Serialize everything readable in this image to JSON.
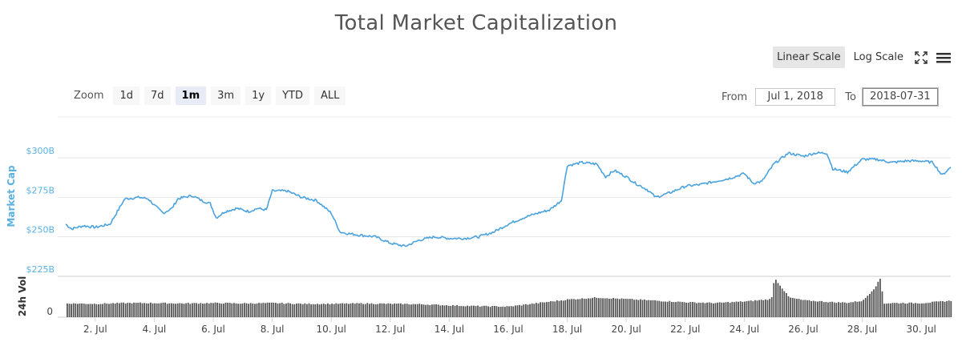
{
  "title": "Total Market Capitalization",
  "scale_controls": {
    "linear": "Linear Scale",
    "log": "Log Scale",
    "fullscreen_icon": "fullscreen-icon",
    "menu_icon": "hamburger-menu-icon",
    "active": "linear"
  },
  "zoom": {
    "label": "Zoom",
    "buttons": [
      "1d",
      "7d",
      "1m",
      "3m",
      "1y",
      "YTD",
      "ALL"
    ],
    "active": "1m"
  },
  "range": {
    "from_label": "From",
    "from_value": "Jul 1, 2018",
    "to_label": "To",
    "to_value": "2018-07-31"
  },
  "colors": {
    "line": "#4aa3df",
    "volume": "#555555",
    "grid": "#e6e6e6",
    "axis_label": "#5ab1e0"
  },
  "chart_data": [
    {
      "type": "line",
      "ylabel": "Market Cap",
      "ylim": [
        225,
        300
      ],
      "yticks": [
        "$225B",
        "$250B",
        "$275B",
        "$300B"
      ],
      "ytick_values": [
        225,
        250,
        275,
        300
      ],
      "xlim": [
        1.0,
        31.0
      ],
      "grid": true,
      "series": [
        {
          "x": [
            1.0,
            1.2,
            1.6,
            2.0,
            2.5,
            3.0,
            3.5,
            3.8,
            4.0,
            4.3,
            4.6,
            4.8,
            5.0,
            5.3,
            5.6,
            5.9,
            6.1,
            6.4,
            6.8,
            7.2,
            7.5,
            7.8,
            8.0,
            8.5,
            9.0,
            9.5,
            10.0,
            10.3,
            10.6,
            11.0,
            11.5,
            12.0,
            12.5,
            13.0,
            13.5,
            14.0,
            14.5,
            15.0,
            15.5,
            16.0,
            16.5,
            17.0,
            17.4,
            17.8,
            18.0,
            18.5,
            19.0,
            19.3,
            19.6,
            20.0,
            20.3,
            20.7,
            21.0,
            21.5,
            22.0,
            22.5,
            23.0,
            23.5,
            24.0,
            24.3,
            24.6,
            25.0,
            25.5,
            26.0,
            26.4,
            26.8,
            27.0,
            27.5,
            28.0,
            28.5,
            29.0,
            29.5,
            30.0,
            30.4,
            30.7,
            31.0
          ],
          "values": [
            258,
            255,
            257,
            256,
            258,
            274,
            275,
            274,
            270,
            265,
            268,
            274,
            275,
            276,
            273,
            271,
            262,
            266,
            268,
            266,
            268,
            267,
            279,
            279,
            275,
            273,
            265,
            253,
            252,
            251,
            250,
            246,
            244,
            248,
            250,
            249,
            249,
            250,
            253,
            258,
            262,
            265,
            267,
            273,
            295,
            297,
            296,
            288,
            292,
            288,
            284,
            280,
            275,
            278,
            282,
            283,
            285,
            287,
            290,
            284,
            285,
            296,
            303,
            301,
            303,
            303,
            293,
            291,
            299,
            299,
            297,
            298,
            298,
            297,
            289,
            294
          ]
        }
      ]
    },
    {
      "type": "bar",
      "ylabel": "24h Vol",
      "yticks": [
        "0"
      ],
      "ylim": [
        0,
        100
      ],
      "x": [
        1.0,
        2.0,
        3.0,
        4.0,
        5.0,
        6.0,
        7.0,
        8.0,
        9.0,
        10.0,
        11.0,
        12.0,
        13.0,
        14.0,
        15.0,
        16.0,
        17.0,
        18.0,
        19.0,
        20.0,
        21.0,
        22.0,
        23.0,
        24.0,
        24.9,
        25.0,
        25.5,
        26.0,
        27.0,
        27.5,
        28.0,
        28.4,
        28.6,
        28.7,
        29.0,
        30.0,
        31.0
      ],
      "values": [
        35,
        34,
        36,
        36,
        35,
        36,
        35,
        36,
        34,
        34,
        35,
        34,
        33,
        30,
        28,
        27,
        36,
        45,
        50,
        46,
        42,
        38,
        36,
        40,
        46,
        100,
        50,
        43,
        38,
        37,
        42,
        75,
        100,
        35,
        36,
        36,
        42
      ],
      "xticks": [
        "2. Jul",
        "4. Jul",
        "6. Jul",
        "8. Jul",
        "10. Jul",
        "12. Jul",
        "14. Jul",
        "16. Jul",
        "18. Jul",
        "20. Jul",
        "22. Jul",
        "24. Jul",
        "26. Jul",
        "28. Jul",
        "30. Jul"
      ],
      "xtick_values": [
        2,
        4,
        6,
        8,
        10,
        12,
        14,
        16,
        18,
        20,
        22,
        24,
        26,
        28,
        30
      ]
    }
  ]
}
